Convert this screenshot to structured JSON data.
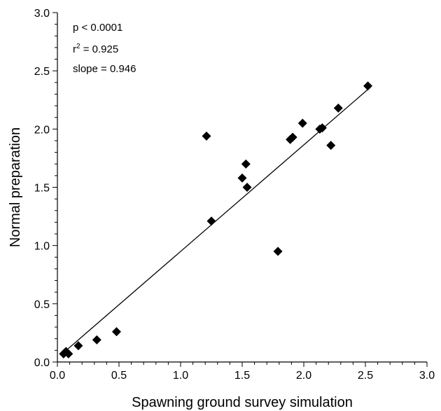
{
  "chart_data": {
    "type": "scatter",
    "xlabel": "Spawning ground survey simulation",
    "ylabel": "Normal preparation",
    "xlim": [
      0.0,
      3.0
    ],
    "ylim": [
      0.0,
      3.0
    ],
    "x_ticks": [
      "0.0",
      "0.5",
      "1.0",
      "1.5",
      "2.0",
      "2.5",
      "3.0"
    ],
    "y_ticks": [
      "0.0",
      "0.5",
      "1.0",
      "1.5",
      "2.0",
      "2.5",
      "3.0"
    ],
    "grid": false,
    "legend": "none",
    "marker": "diamond",
    "marker_color": "#000000",
    "annotations": [
      {
        "key": "p",
        "text": "p < 0.0001"
      },
      {
        "key": "r2",
        "base": "r",
        "sup": "2",
        "rest": " = 0.925"
      },
      {
        "key": "slope",
        "text": "slope = 0.946"
      }
    ],
    "points": [
      {
        "x": 0.05,
        "y": 0.07
      },
      {
        "x": 0.07,
        "y": 0.09
      },
      {
        "x": 0.09,
        "y": 0.07
      },
      {
        "x": 0.17,
        "y": 0.14
      },
      {
        "x": 0.32,
        "y": 0.19
      },
      {
        "x": 0.48,
        "y": 0.26
      },
      {
        "x": 1.21,
        "y": 1.94
      },
      {
        "x": 1.25,
        "y": 1.21
      },
      {
        "x": 1.5,
        "y": 1.58
      },
      {
        "x": 1.53,
        "y": 1.7
      },
      {
        "x": 1.54,
        "y": 1.5
      },
      {
        "x": 1.79,
        "y": 0.95
      },
      {
        "x": 1.89,
        "y": 1.91
      },
      {
        "x": 1.91,
        "y": 1.93
      },
      {
        "x": 1.99,
        "y": 2.05
      },
      {
        "x": 2.13,
        "y": 2.0
      },
      {
        "x": 2.15,
        "y": 2.01
      },
      {
        "x": 2.22,
        "y": 1.86
      },
      {
        "x": 2.28,
        "y": 2.18
      },
      {
        "x": 2.52,
        "y": 2.37
      }
    ],
    "fit_line": {
      "x": [
        0.05,
        2.52
      ],
      "y": [
        0.08,
        2.34
      ]
    }
  }
}
